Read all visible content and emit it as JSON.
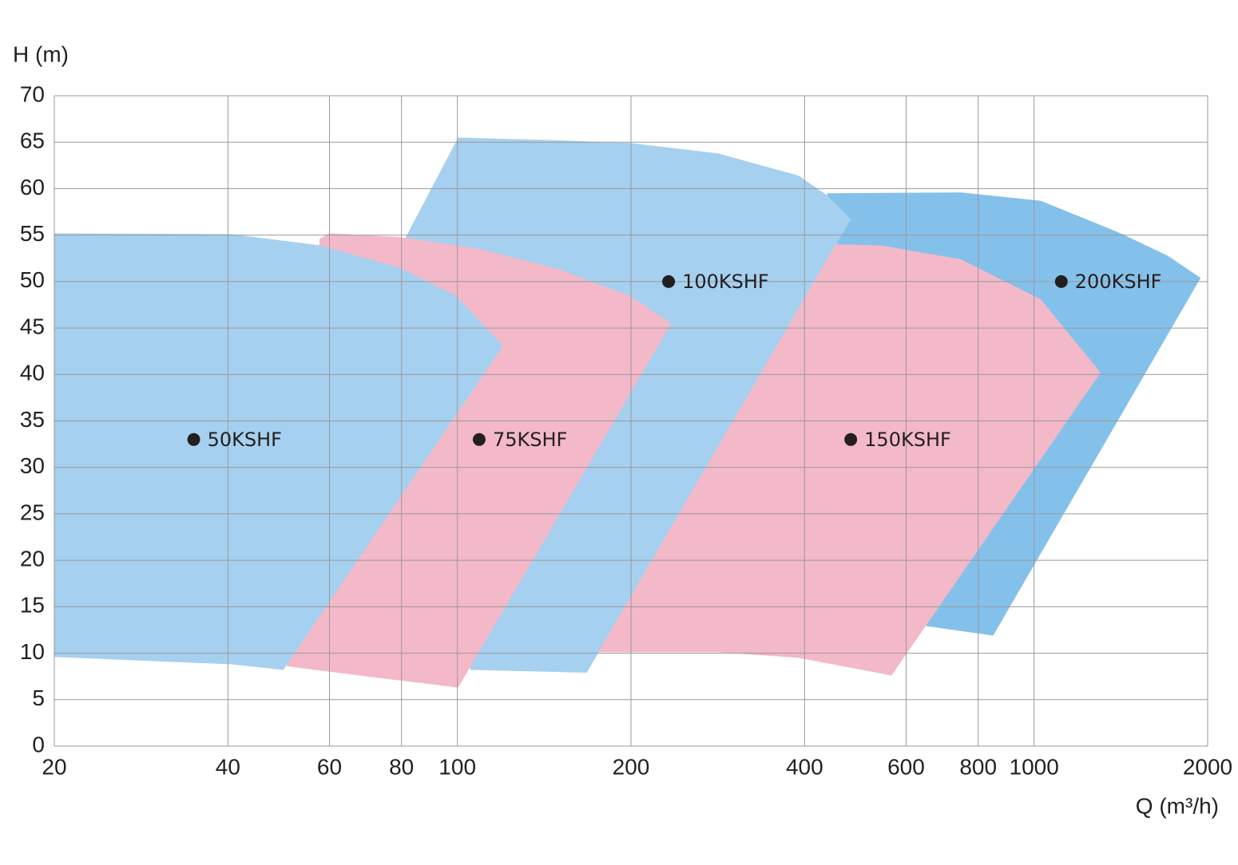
{
  "chart_data": {
    "type": "area",
    "y_label": "H (m)",
    "x_label": "Q (m³/h)",
    "xscale": "log",
    "xlim": [
      20,
      2000
    ],
    "xticks": [
      20,
      40,
      60,
      80,
      100,
      200,
      400,
      600,
      800,
      1000,
      2000
    ],
    "ylim": [
      0,
      70
    ],
    "yticks": [
      0,
      5,
      10,
      15,
      20,
      25,
      30,
      35,
      40,
      45,
      50,
      55,
      60,
      65,
      70
    ],
    "grid": true,
    "grid_color": "#999999",
    "marker_color": "#231f20",
    "series": [
      {
        "name": "200KSHF",
        "color": "#84c1ea",
        "x": [
          437.3,
          746.5,
          1027,
          1413,
          1703,
          1945,
          849.5,
          651.6,
          542
        ],
        "values": [
          59.5,
          59.6,
          58.7,
          55.2,
          52.8,
          50.4,
          11.9,
          12.9,
          20.2
        ],
        "marker": [
          1115,
          50
        ]
      },
      {
        "name": "100KSHF",
        "color": "#a6d0ef",
        "x": [
          81.4,
          100.3,
          150.7,
          200,
          282.8,
          390.6,
          437.3,
          481.1,
          167.6,
          105.3,
          79.3
        ],
        "values": [
          54.8,
          65.5,
          65.2,
          64.9,
          63.8,
          61.4,
          59.3,
          56.7,
          7.9,
          8.2,
          52.8
        ],
        "marker": [
          232.4,
          50
        ]
      },
      {
        "name": "150KSHF",
        "color": "#f3b9c9",
        "x": [
          452.9,
          175.4,
          282.8,
          390.6,
          566,
          1304,
          1027,
          746.5,
          542
        ],
        "values": [
          54.0,
          10.1,
          10.1,
          9.5,
          7.6,
          40.2,
          48.1,
          52.4,
          53.9
        ],
        "marker": [
          481,
          33
        ]
      },
      {
        "name": "75KSHF",
        "color": "#f3b9c9",
        "x": [
          57.7,
          60.0,
          79.3,
          109.4,
          150.7,
          200,
          234.9,
          100.3,
          69.5,
          50.6
        ],
        "values": [
          54.6,
          55.2,
          54.8,
          53.5,
          51.3,
          48.4,
          45.5,
          6.3,
          7.5,
          8.6
        ],
        "marker": [
          109.1,
          33
        ]
      },
      {
        "name": "50KSHF",
        "color": "#a6d0ef",
        "x": [
          20,
          40.6,
          57.7,
          79.3,
          99.3,
          120,
          49.9,
          40.6,
          20
        ],
        "values": [
          55.2,
          55.1,
          53.9,
          51.5,
          48.5,
          43.1,
          8.2,
          8.8,
          9.6
        ],
        "marker": [
          34.9,
          33
        ]
      }
    ]
  }
}
